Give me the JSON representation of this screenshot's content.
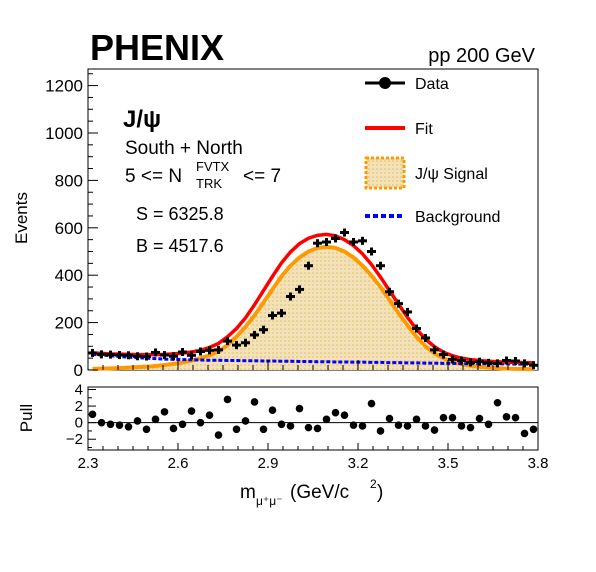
{
  "header": {
    "experiment": "PHENIX",
    "system": "pp 200 GeV"
  },
  "annotations": {
    "particle": "J/ψ",
    "arm": "South + North",
    "mult_prefix": "5 <= N",
    "mult_sup": "FVTX",
    "mult_sub": "TRK",
    "mult_suffix": "<= 7",
    "signal_count": "S = 6325.8",
    "background_count": "B = 4517.6"
  },
  "legend": {
    "data": "Data",
    "fit": "Fit",
    "signal": "J/ψ Signal",
    "background": "Background"
  },
  "axes": {
    "ylabel_top": "Events",
    "ylabel_bottom": "Pull",
    "xlabel_main": "m",
    "xlabel_sub": "μ⁺μ⁻",
    "xlabel_unit_open": " (GeV/c",
    "xlabel_unit_sup": "2",
    "xlabel_unit_close": ")"
  },
  "colors": {
    "data": "#000000",
    "fit": "#ff0000",
    "signal_line": "#ff9900",
    "signal_fill": "#f3e2b8",
    "background": "#0000ff"
  },
  "chart_data": [
    {
      "type": "scatter",
      "panel": "main",
      "xlim": [
        2.3,
        3.8
      ],
      "ylim": [
        0,
        1270
      ],
      "xticks": [
        2.3,
        2.6,
        2.9,
        3.2,
        3.5,
        3.8
      ],
      "yticks": [
        0,
        200,
        400,
        600,
        800,
        1000,
        1200
      ],
      "x": [
        2.315,
        2.345,
        2.375,
        2.405,
        2.435,
        2.465,
        2.495,
        2.525,
        2.555,
        2.585,
        2.615,
        2.645,
        2.675,
        2.705,
        2.735,
        2.765,
        2.795,
        2.825,
        2.855,
        2.885,
        2.915,
        2.945,
        2.975,
        3.005,
        3.035,
        3.065,
        3.095,
        3.125,
        3.155,
        3.185,
        3.215,
        3.245,
        3.275,
        3.305,
        3.335,
        3.365,
        3.395,
        3.425,
        3.455,
        3.485,
        3.515,
        3.545,
        3.575,
        3.605,
        3.635,
        3.665,
        3.695,
        3.725,
        3.755,
        3.785
      ],
      "series": [
        {
          "name": "Data",
          "style": "points",
          "values": [
            72,
            66,
            65,
            63,
            62,
            58,
            57,
            74,
            63,
            58,
            76,
            62,
            78,
            83,
            85,
            122,
            105,
            115,
            148,
            170,
            230,
            240,
            310,
            340,
            440,
            535,
            540,
            555,
            580,
            540,
            545,
            500,
            440,
            330,
            280,
            245,
            175,
            135,
            85,
            65,
            45,
            40,
            32,
            35,
            30,
            28,
            40,
            38,
            28,
            20
          ]
        },
        {
          "name": "Fit",
          "style": "line",
          "values": [
            72,
            70,
            68,
            67,
            66,
            65,
            65,
            65,
            66,
            68,
            71,
            76,
            83,
            95,
            112,
            140,
            175,
            220,
            275,
            335,
            395,
            452,
            498,
            533,
            556,
            568,
            572,
            566,
            550,
            525,
            490,
            445,
            392,
            335,
            278,
            222,
            172,
            130,
            98,
            75,
            60,
            50,
            44,
            40,
            37,
            35,
            33,
            32,
            31,
            30
          ]
        },
        {
          "name": "J/ψ Signal",
          "style": "filled-histogram",
          "values": [
            5,
            6,
            7,
            8,
            10,
            12,
            14,
            17,
            21,
            26,
            32,
            40,
            50,
            62,
            78,
            105,
            140,
            182,
            230,
            285,
            340,
            395,
            440,
            475,
            500,
            515,
            520,
            515,
            500,
            475,
            440,
            398,
            350,
            295,
            240,
            188,
            140,
            100,
            70,
            50,
            35,
            25,
            18,
            14,
            10,
            8,
            6,
            5,
            4,
            3
          ]
        },
        {
          "name": "Background",
          "style": "dashed-line",
          "values": [
            66,
            63,
            60,
            57,
            54,
            52,
            50,
            48,
            46,
            45,
            44,
            43,
            42,
            41,
            41,
            40,
            40,
            39,
            39,
            38,
            38,
            37,
            37,
            36,
            36,
            35,
            35,
            34,
            34,
            33,
            33,
            32,
            32,
            31,
            31,
            30,
            30,
            29,
            29,
            28,
            28,
            27,
            27,
            27,
            26,
            26,
            26,
            25,
            25,
            25
          ]
        }
      ]
    },
    {
      "type": "scatter",
      "panel": "pull",
      "xlim": [
        2.3,
        3.8
      ],
      "ylim": [
        -3.3,
        4.3
      ],
      "yticks": [
        -2,
        0,
        2,
        4
      ],
      "x": [
        2.315,
        2.345,
        2.375,
        2.405,
        2.435,
        2.465,
        2.495,
        2.525,
        2.555,
        2.585,
        2.615,
        2.645,
        2.675,
        2.705,
        2.735,
        2.765,
        2.795,
        2.825,
        2.855,
        2.885,
        2.915,
        2.945,
        2.975,
        3.005,
        3.035,
        3.065,
        3.095,
        3.125,
        3.155,
        3.185,
        3.215,
        3.245,
        3.275,
        3.305,
        3.335,
        3.365,
        3.395,
        3.425,
        3.455,
        3.485,
        3.515,
        3.545,
        3.575,
        3.605,
        3.635,
        3.665,
        3.695,
        3.725,
        3.755,
        3.785
      ],
      "series": [
        {
          "name": "Pull",
          "values": [
            1.0,
            0.0,
            -0.2,
            -0.3,
            -0.5,
            0.2,
            -0.8,
            0.4,
            1.3,
            -0.7,
            -0.2,
            1.4,
            0.0,
            0.9,
            -1.5,
            2.8,
            -0.8,
            0.2,
            2.5,
            -0.8,
            1.5,
            -0.2,
            -0.4,
            1.7,
            -0.6,
            -0.7,
            0.4,
            1.2,
            0.9,
            -0.3,
            -0.4,
            2.3,
            -1.0,
            0.5,
            -0.3,
            -0.4,
            0.4,
            -0.4,
            -0.9,
            0.6,
            0.6,
            -0.4,
            -0.6,
            0.5,
            -0.2,
            2.4,
            0.7,
            0.6,
            -1.3,
            -0.8
          ]
        }
      ]
    }
  ]
}
